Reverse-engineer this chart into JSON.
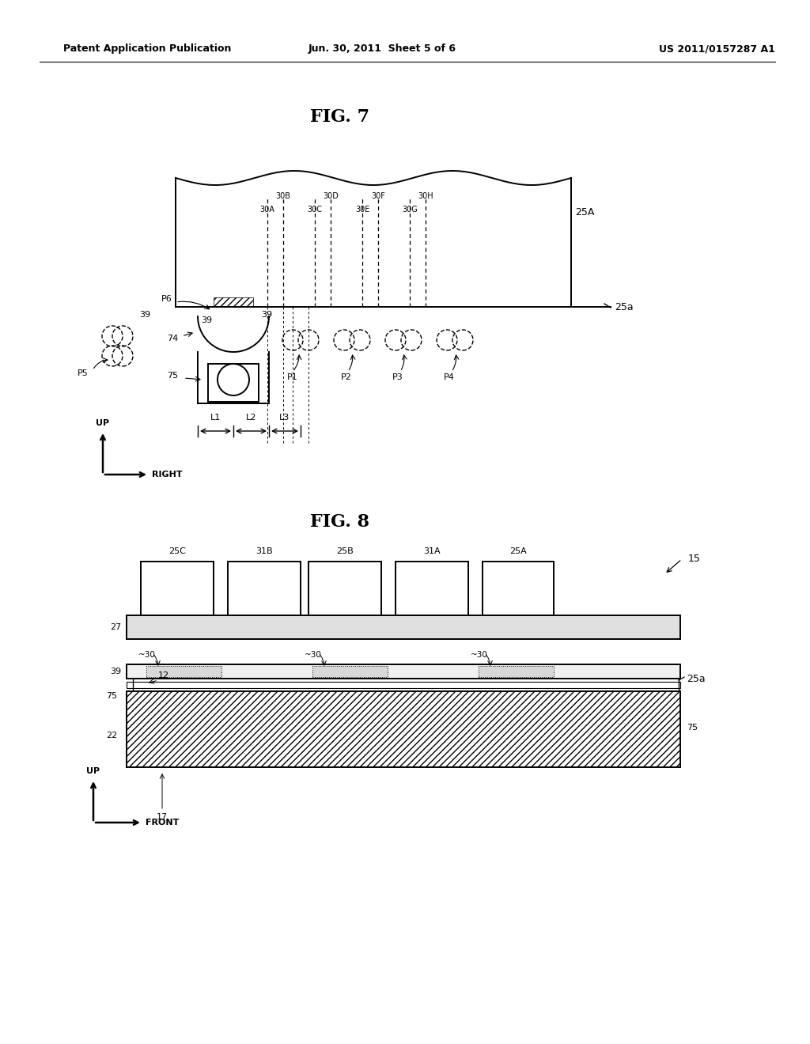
{
  "bg_color": "#ffffff",
  "header_left": "Patent Application Publication",
  "header_mid": "Jun. 30, 2011  Sheet 5 of 6",
  "header_right": "US 2011/0157287 A1",
  "fig7_title": "FIG. 7",
  "fig8_title": "FIG. 8"
}
